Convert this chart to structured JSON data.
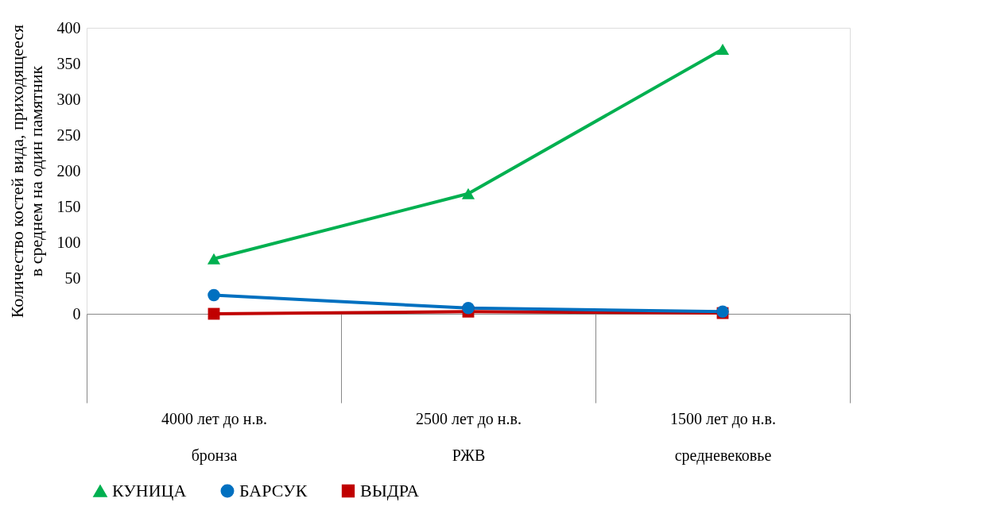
{
  "chart_data": {
    "type": "line",
    "ylabel": "Количество костей вида, приходящееся в среднем на один памятник",
    "categories": [
      "4000 лет до н.в.\nбронза",
      "2500 лет до н.в.\nРЖВ",
      "1500 лет до н.в.\nсредневековье"
    ],
    "series": [
      {
        "name": "КУНИЦА",
        "color": "#00b050",
        "marker": "triangle",
        "values": [
          77,
          168,
          370
        ]
      },
      {
        "name": "БАРСУК",
        "color": "#0070c0",
        "marker": "circle",
        "values": [
          26,
          8,
          3
        ]
      },
      {
        "name": "ВЫДРА",
        "color": "#c00000",
        "marker": "square",
        "values": [
          0,
          3,
          1
        ]
      }
    ],
    "ylim": [
      0,
      400
    ],
    "yticks": [
      0,
      50,
      100,
      150,
      200,
      250,
      300,
      350,
      400
    ],
    "grid": false,
    "legend": "bottom"
  }
}
